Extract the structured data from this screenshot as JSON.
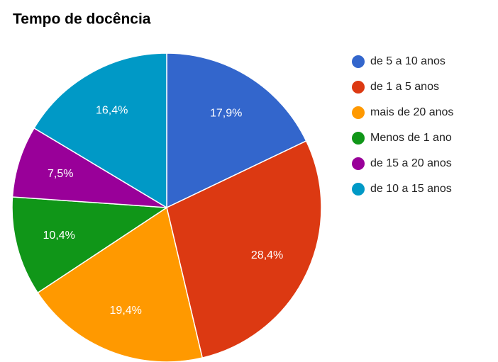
{
  "chart_data": {
    "type": "pie",
    "title": "Tempo de docência",
    "categories": [
      "de 5 a 10 anos",
      "de 1 a 5 anos",
      "mais de 20 anos",
      "Menos de 1 ano",
      "de 15 a 20 anos",
      "de 10 a 15 anos"
    ],
    "values": [
      17.9,
      28.4,
      19.4,
      10.4,
      7.5,
      16.4
    ],
    "value_labels": [
      "17,9%",
      "28,4%",
      "19,4%",
      "10,4%",
      "7,5%",
      "16,4%"
    ],
    "colors": [
      "#3366cc",
      "#dc3912",
      "#ff9900",
      "#109618",
      "#990099",
      "#0099c6"
    ],
    "legend": "right"
  }
}
